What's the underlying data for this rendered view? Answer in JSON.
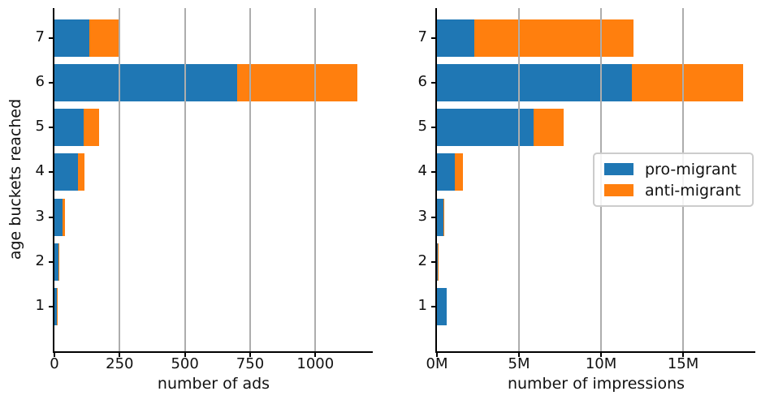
{
  "figure": {
    "background": "#ffffff",
    "grid_color": "#adadad",
    "spine_color": "#000000"
  },
  "ylabel": "age buckets reached",
  "legend": {
    "position": "center-right-of-second-plot",
    "items": [
      {
        "label": "pro-migrant",
        "color": "#1f77b4"
      },
      {
        "label": "anti-migrant",
        "color": "#ff7f0e"
      }
    ]
  },
  "chart_data": [
    {
      "type": "bar",
      "orientation": "horizontal",
      "stacked": true,
      "title": "",
      "xlabel": "number of ads",
      "ylabel": "age buckets reached",
      "categories": [
        "1",
        "2",
        "3",
        "4",
        "5",
        "6",
        "7"
      ],
      "series": [
        {
          "name": "pro-migrant",
          "color": "#1f77b4",
          "values": [
            8,
            15,
            32,
            91,
            112,
            700,
            135
          ]
        },
        {
          "name": "anti-migrant",
          "color": "#ff7f0e",
          "values": [
            1,
            4,
            10,
            23,
            59,
            460,
            110
          ]
        }
      ],
      "xlim": [
        0,
        1220
      ],
      "xticks": [
        0,
        250,
        500,
        750,
        1000
      ],
      "xtick_labels": [
        "0",
        "250",
        "500",
        "750",
        "1000"
      ],
      "grid": true,
      "grid_on_top_of_bars": true,
      "legend": false
    },
    {
      "type": "bar",
      "orientation": "horizontal",
      "stacked": true,
      "title": "",
      "xlabel": "number of impressions",
      "ylabel": "",
      "unit": "millions",
      "categories": [
        "1",
        "2",
        "3",
        "4",
        "5",
        "6",
        "7"
      ],
      "series": [
        {
          "name": "pro-migrant",
          "color": "#1f77b4",
          "values": [
            0.6,
            0.03,
            0.4,
            1.1,
            5.9,
            11.9,
            2.3
          ]
        },
        {
          "name": "anti-migrant",
          "color": "#ff7f0e",
          "values": [
            0,
            0.07,
            0.05,
            0.5,
            1.8,
            6.75,
            9.7
          ]
        }
      ],
      "xlim": [
        0,
        19.4
      ],
      "xticks": [
        0,
        5,
        10,
        15
      ],
      "xtick_labels": [
        "0M",
        "5M",
        "10M",
        "15M"
      ],
      "grid": true,
      "grid_on_top_of_bars": true,
      "legend": true
    }
  ]
}
